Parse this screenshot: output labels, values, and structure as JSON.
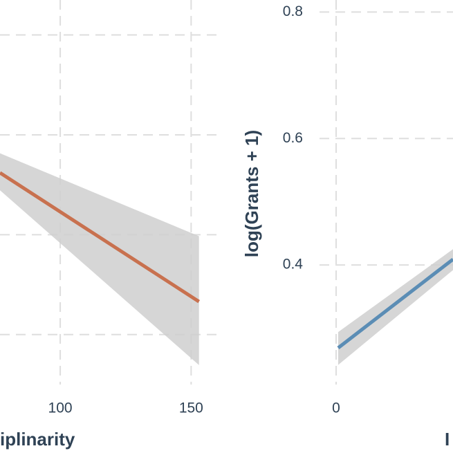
{
  "chart_data": [
    {
      "type": "line",
      "x_label": "iplinarity",
      "x": [
        77,
        153
      ],
      "series": [
        {
          "color": "#c8714f",
          "values": [
            0.524,
            0.266
          ],
          "lower": [
            0.489,
            0.139
          ],
          "upper": [
            0.563,
            0.397
          ]
        }
      ],
      "xlim": [
        77,
        161
      ],
      "xticks": [
        100,
        150
      ],
      "ylim": [
        0.1,
        0.87
      ],
      "grid_values": [
        0.2,
        0.4,
        0.6,
        0.8
      ],
      "grid": true
    },
    {
      "type": "line",
      "x_label": "I",
      "y_label": "log(Grants + 1)",
      "x": [
        0.015,
        0.845
      ],
      "series": [
        {
          "color": "#5b8db5",
          "values": [
            0.269,
            0.409
          ],
          "lower": [
            0.242,
            0.392
          ],
          "upper": [
            0.294,
            0.425
          ]
        }
      ],
      "xlim": [
        -0.13,
        0.845
      ],
      "xticks": [
        0
      ],
      "ylim": [
        0.211,
        0.819
      ],
      "yticks": [
        0.4,
        0.6,
        0.8
      ],
      "grid": true
    }
  ]
}
